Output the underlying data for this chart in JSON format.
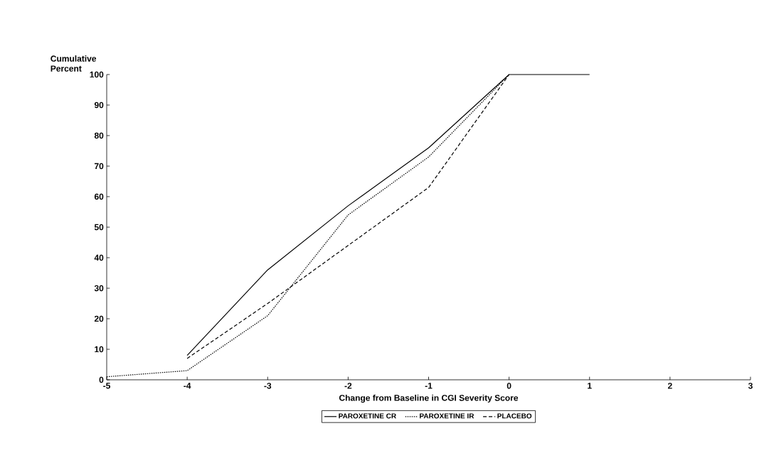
{
  "chart_data": {
    "type": "line",
    "xlabel": "Change from Baseline in CGI Severity Score",
    "ylabel": "Cumulative Percent",
    "xlim": [
      -5,
      3
    ],
    "xticks": [
      -5,
      -4,
      -3,
      -2,
      -1,
      0,
      1,
      2,
      3
    ],
    "ylim": [
      0,
      100
    ],
    "yticks": [
      0,
      10,
      20,
      30,
      40,
      50,
      60,
      70,
      80,
      90,
      100
    ],
    "grid": false,
    "legend": "bottom",
    "marker": "none",
    "series": [
      {
        "name": "PAROXETINE CR",
        "color": "#000000",
        "line_style": "solid",
        "x": [
          -4,
          -3,
          -2,
          -1,
          0,
          1
        ],
        "values": [
          8,
          36,
          57,
          76,
          100,
          100
        ]
      },
      {
        "name": "PAROXETINE IR",
        "color": "#000000",
        "line_style": "dotted",
        "x": [
          -5,
          -4,
          -3,
          -2,
          -1,
          0
        ],
        "values": [
          1,
          3,
          21,
          54,
          73,
          100
        ]
      },
      {
        "name": "PLACEBO",
        "color": "#000000",
        "line_style": "dashed",
        "x": [
          -4,
          -3,
          -2,
          -1,
          0
        ],
        "values": [
          7,
          25,
          44,
          63,
          100
        ]
      }
    ]
  }
}
